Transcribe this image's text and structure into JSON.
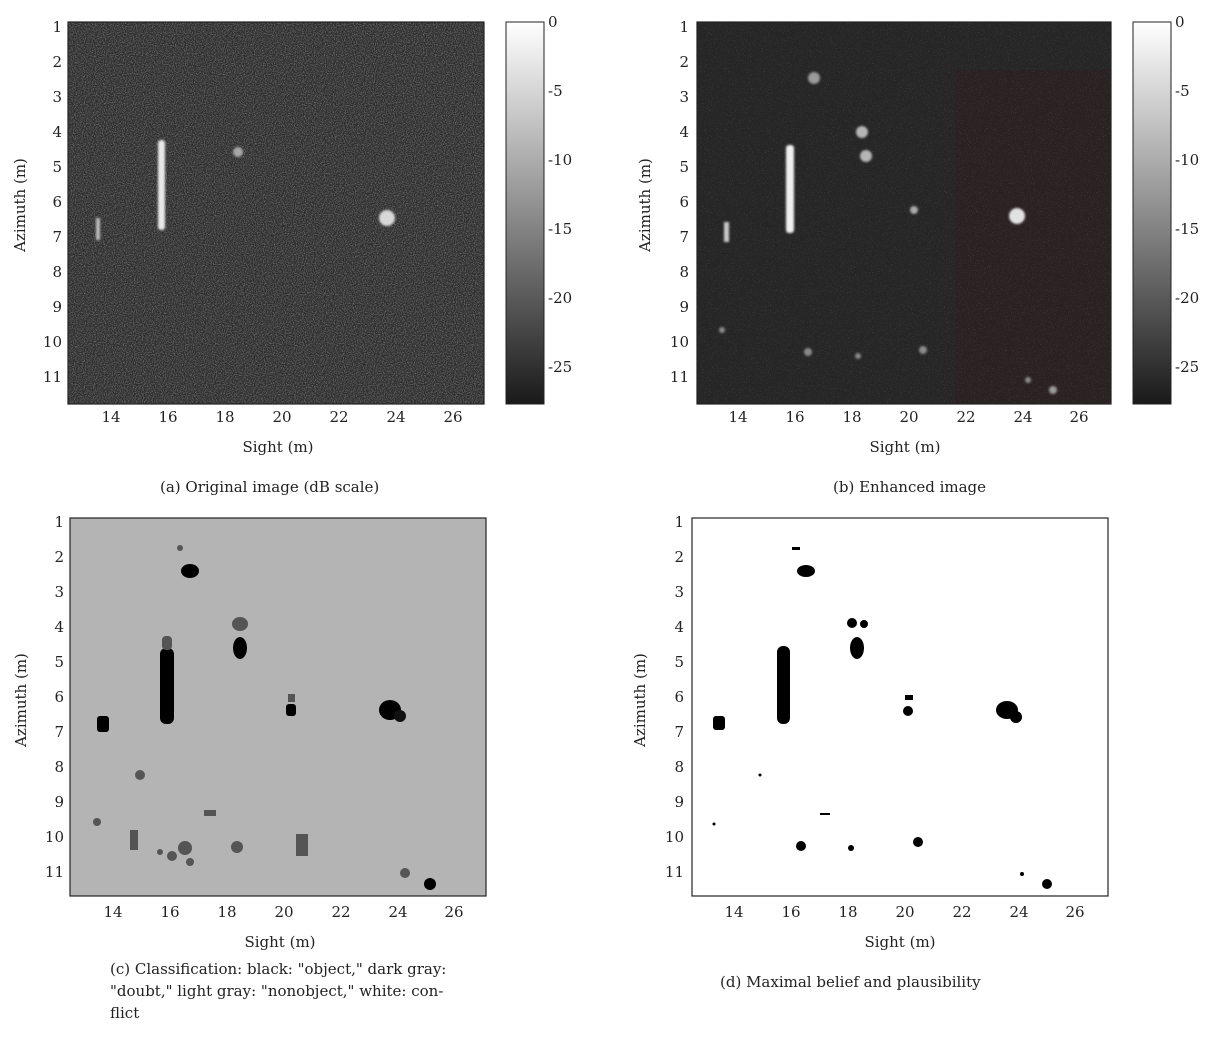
{
  "figure": {
    "panels": [
      {
        "id": "a",
        "caption": "(a) Original image (dB scale)",
        "xlabel": "Sight (m)",
        "ylabel": "Azimuth (m)",
        "xticks": [
          "14",
          "16",
          "18",
          "20",
          "22",
          "24",
          "26"
        ],
        "yticks": [
          "1",
          "2",
          "3",
          "4",
          "5",
          "6",
          "7",
          "8",
          "9",
          "10",
          "11"
        ],
        "colorbar": {
          "ticks": [
            "0",
            "-5",
            "-10",
            "-15",
            "-20",
            "-25"
          ]
        }
      },
      {
        "id": "b",
        "caption": "(b) Enhanced image",
        "xlabel": "Sight (m)",
        "ylabel": "Azimuth (m)",
        "xticks": [
          "14",
          "16",
          "18",
          "20",
          "22",
          "24",
          "26"
        ],
        "yticks": [
          "1",
          "2",
          "3",
          "4",
          "5",
          "6",
          "7",
          "8",
          "9",
          "10",
          "11"
        ],
        "colorbar": {
          "ticks": [
            "0",
            "-5",
            "-10",
            "-15",
            "-20",
            "-25"
          ]
        }
      },
      {
        "id": "c",
        "caption_lines": [
          "(c) Classification: black: \"object,\" dark gray:",
          "\"doubt,\" light gray: \"nonobject,\" white: con-",
          "flict"
        ],
        "xlabel": "Sight (m)",
        "ylabel": "Azimuth (m)",
        "xticks": [
          "14",
          "16",
          "18",
          "20",
          "22",
          "24",
          "26"
        ],
        "yticks": [
          "1",
          "2",
          "3",
          "4",
          "5",
          "6",
          "7",
          "8",
          "9",
          "10",
          "11"
        ]
      },
      {
        "id": "d",
        "caption": "(d) Maximal belief and plausibility",
        "xlabel": "Sight (m)",
        "ylabel": "Azimuth (m)",
        "xticks": [
          "14",
          "16",
          "18",
          "20",
          "22",
          "24",
          "26"
        ],
        "yticks": [
          "1",
          "2",
          "3",
          "4",
          "5",
          "6",
          "7",
          "8",
          "9",
          "10",
          "11"
        ]
      }
    ],
    "colors": {
      "dark_background": "#2c2c2c",
      "light_gray": "#b4b4b4",
      "dark_gray": "#555555",
      "object": "#000000",
      "conflict": "#ffffff"
    }
  }
}
